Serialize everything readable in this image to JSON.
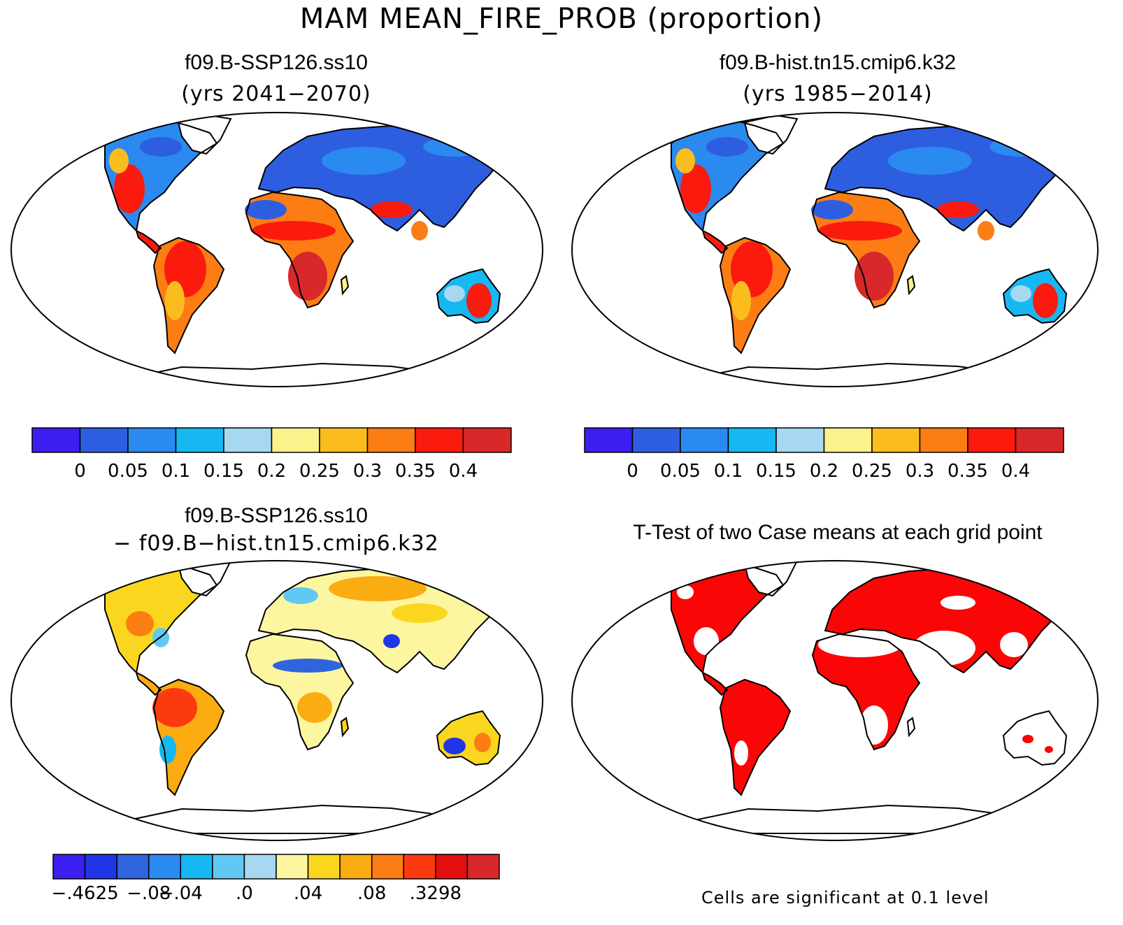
{
  "title": "MAM MEAN_FIRE_PROB (proportion)",
  "panels": [
    {
      "id": "future",
      "title": "f09.B-SSP126.ss10",
      "subtitle": "(yrs 2041−2070)"
    },
    {
      "id": "hist",
      "title": "f09.B-hist.tn15.cmip6.k32",
      "subtitle": "(yrs 1985−2014)"
    },
    {
      "id": "diff",
      "title": "f09.B-SSP126.ss10",
      "subtitle": "− f09.B−hist.tn15.cmip6.k32"
    },
    {
      "id": "ttest",
      "title": "T-Test of two Case means at each grid point",
      "subtitle": ""
    }
  ],
  "colorbars": {
    "mean": {
      "colors": [
        "#3a1ff0",
        "#2e5ee0",
        "#2a8af0",
        "#16b8f2",
        "#a6d8f2",
        "#fbf28c",
        "#fbbd1e",
        "#fb7d14",
        "#fb1a0e",
        "#d8282a"
      ],
      "labels": [
        "0",
        "0.05",
        "0.1",
        "0.15",
        "0.2",
        "0.25",
        "0.3",
        "0.35",
        "0.4"
      ]
    },
    "diff": {
      "colors": [
        "#3a1ff0",
        "#2036e6",
        "#2e64de",
        "#2a8af0",
        "#16b8f2",
        "#60c8f2",
        "#a6d8f2",
        "#fdf6a0",
        "#fbd61e",
        "#fbac10",
        "#fb7d14",
        "#fb3a10",
        "#e40e0e",
        "#d8282a"
      ],
      "labels": [
        {
          "text": "−.4625",
          "boundary": 0
        },
        {
          "text": "−.08",
          "boundary": 2
        },
        {
          "text": "−.04",
          "boundary": 3
        },
        {
          "text": ".0",
          "boundary": 5
        },
        {
          "text": ".04",
          "boundary": 7
        },
        {
          "text": ".08",
          "boundary": 9
        },
        {
          "text": ".3298",
          "boundary": 11
        }
      ]
    }
  },
  "significance_note": "Cells are significant at 0.1 level"
}
